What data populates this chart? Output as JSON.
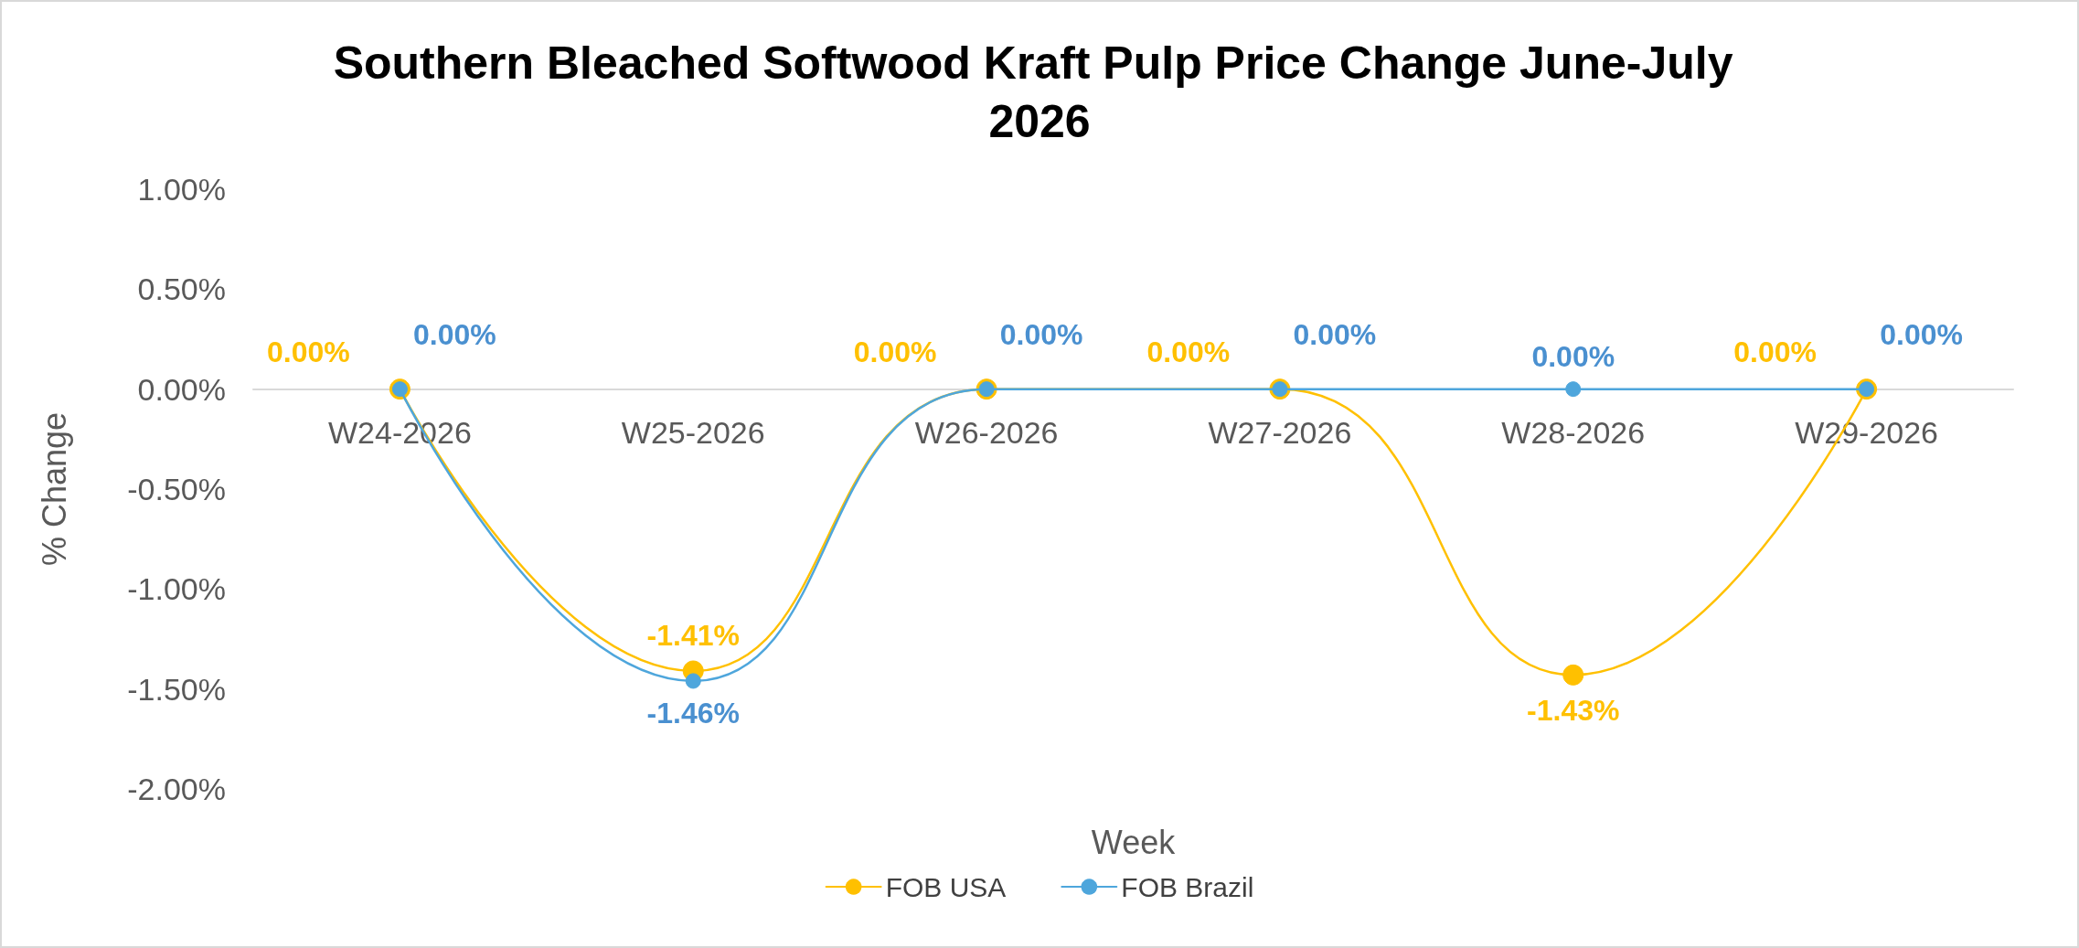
{
  "chart_data": {
    "type": "line",
    "title": "Southern Bleached Softwood Kraft Pulp Price Change June-July 2026",
    "xlabel": "Week",
    "ylabel": "% Change",
    "categories": [
      "W24-2026",
      "W25-2026",
      "W26-2026",
      "W27-2026",
      "W28-2026",
      "W29-2026"
    ],
    "series": [
      {
        "name": "FOB USA",
        "color": "#ffc000",
        "values": [
          0,
          -1.41,
          0,
          0,
          -1.43,
          0
        ],
        "value_labels": [
          "0.00%",
          "-1.41%",
          "0.00%",
          "0.00%",
          "-1.43%",
          "0.00%"
        ]
      },
      {
        "name": "FOB Brazil",
        "color": "#4ea6dc",
        "values": [
          0,
          -1.46,
          0,
          0,
          0,
          0
        ],
        "value_labels": [
          "0.00%",
          "-1.46%",
          "0.00%",
          "0.00%",
          "0.00%",
          "0.00%"
        ]
      }
    ],
    "ylim": [
      -2,
      1
    ],
    "yticks": [
      {
        "value": -2,
        "label": "-2.00%"
      },
      {
        "value": -1.5,
        "label": "-1.50%"
      },
      {
        "value": -1,
        "label": "-1.00%"
      },
      {
        "value": -0.5,
        "label": "-0.50%"
      },
      {
        "value": 0,
        "label": "0.00%"
      },
      {
        "value": 0.5,
        "label": "0.50%"
      },
      {
        "value": 1,
        "label": "1.00%"
      }
    ],
    "grid": false,
    "legend": "bottom",
    "marker": "circle",
    "line_style": "solid"
  }
}
